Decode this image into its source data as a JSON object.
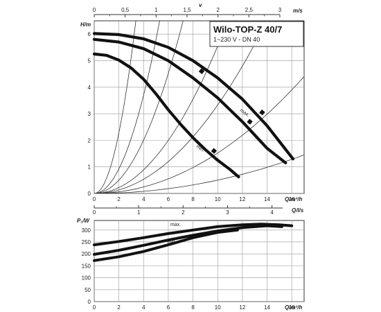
{
  "chart_data": [
    {
      "type": "line",
      "title": "Wilo-TOP-Z 40/7",
      "subtitle": "1~230 V - DN 40",
      "xlabel": "Q/m³/h",
      "ylabel": "H/m",
      "top_axis_label": "v",
      "top_axis_unit": "m/s",
      "second_top_label": "v",
      "xlim": [
        0,
        17
      ],
      "ylim": [
        0,
        6.5
      ],
      "xticks": [
        "0",
        "2",
        "4",
        "6",
        "8",
        "10",
        "12",
        "14",
        "16"
      ],
      "yticks": [
        "0",
        "1",
        "2",
        "3",
        "4",
        "5",
        "6"
      ],
      "top_ticks": [
        "0",
        "0,5",
        "1",
        "1,5",
        "2",
        "2,5",
        "3"
      ],
      "grid": true,
      "series": [
        {
          "name": "max.",
          "x": [
            0,
            2,
            4,
            6,
            8,
            10,
            12,
            14,
            16.1
          ],
          "y": [
            6.02,
            5.98,
            5.82,
            5.5,
            5.0,
            4.35,
            3.55,
            2.55,
            1.3
          ]
        },
        {
          "x": [
            0,
            2,
            4,
            6,
            8,
            10,
            12,
            14,
            15.5
          ],
          "y": [
            5.8,
            5.7,
            5.45,
            5.0,
            4.35,
            3.6,
            2.7,
            1.7,
            1.15
          ]
        },
        {
          "name": "min.",
          "x": [
            0,
            1,
            2,
            3,
            4,
            5,
            6,
            7,
            8,
            9,
            10,
            11,
            11.7
          ],
          "y": [
            5.25,
            5.2,
            5.02,
            4.72,
            4.3,
            3.75,
            3.15,
            2.6,
            2.1,
            1.65,
            1.25,
            0.9,
            0.62
          ]
        }
      ],
      "system_curves": [
        {
          "x": [
            0,
            2,
            3,
            3.5
          ],
          "y": [
            0,
            2.3,
            5.2,
            7.0
          ]
        },
        {
          "x": [
            0,
            3,
            4.5,
            5.3
          ],
          "y": [
            0,
            2.1,
            4.7,
            6.5
          ]
        },
        {
          "x": [
            0,
            4,
            6,
            7.2
          ],
          "y": [
            0,
            2.0,
            4.5,
            6.5
          ]
        },
        {
          "x": [
            0,
            6,
            8.5,
            10.4
          ],
          "y": [
            0,
            2.0,
            4.0,
            6.0
          ]
        },
        {
          "x": [
            0,
            8,
            11,
            13.2
          ],
          "y": [
            0,
            2.0,
            4.0,
            5.8
          ]
        },
        {
          "x": [
            0,
            10,
            14,
            17
          ],
          "y": [
            0,
            1.5,
            3.0,
            4.4
          ]
        },
        {
          "x": [
            0,
            10,
            14,
            17
          ],
          "y": [
            0,
            0.5,
            0.95,
            1.45
          ]
        }
      ]
    },
    {
      "type": "line",
      "xlabel": "Q/m³/h",
      "ylabel": "P₁/W",
      "second_axis_unit": "Q/l/s",
      "xlim": [
        0,
        17
      ],
      "ylim": [
        0,
        340
      ],
      "xticks": [
        "0",
        "2",
        "4",
        "6",
        "8",
        "10",
        "12",
        "14",
        "16"
      ],
      "yticks": [
        "0",
        "50",
        "100",
        "150",
        "200",
        "250",
        "300"
      ],
      "second_ticks": [
        "0",
        "1",
        "2",
        "3",
        "4"
      ],
      "grid": true,
      "series": [
        {
          "name": "max.",
          "x": [
            0,
            2,
            4,
            6,
            8,
            10,
            12,
            13.5,
            15,
            16
          ],
          "y": [
            238,
            252,
            268,
            285,
            300,
            314,
            322,
            325,
            322,
            318
          ]
        },
        {
          "x": [
            0,
            2,
            4,
            6,
            8,
            10,
            12,
            14,
            15.2
          ],
          "y": [
            198,
            215,
            236,
            258,
            278,
            296,
            310,
            318,
            314
          ]
        },
        {
          "name": "min.",
          "x": [
            0,
            2,
            4,
            6,
            8,
            10,
            11.6
          ],
          "y": [
            172,
            188,
            210,
            238,
            268,
            290,
            300
          ]
        }
      ]
    }
  ]
}
